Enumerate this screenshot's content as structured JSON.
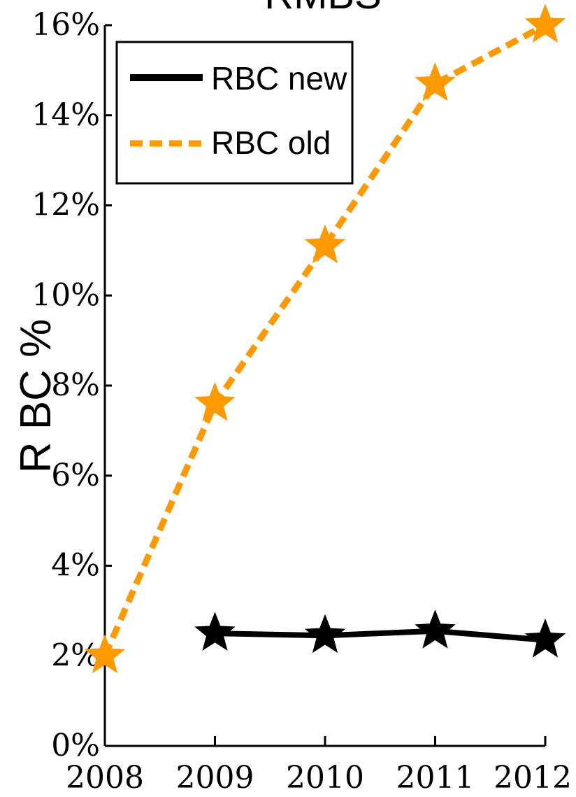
{
  "chart_data": {
    "type": "line",
    "title": "RMBS",
    "xlabel": "",
    "ylabel": "R BC %",
    "categories": [
      "2008",
      "2009",
      "2010",
      "2011",
      "2012"
    ],
    "y_tick_labels": [
      "0%",
      "2%",
      "4%",
      "6%",
      "8%",
      "10%",
      "12%",
      "14%",
      "16%"
    ],
    "ylim": [
      0,
      16
    ],
    "grid": false,
    "legend_placement": "top-left",
    "series": [
      {
        "name": "RBC new",
        "color": "#000000",
        "line_style": "solid",
        "marker": "star",
        "values": [
          null,
          2.5,
          2.45,
          2.55,
          2.35
        ]
      },
      {
        "name": "RBC old",
        "color": "#ff9900",
        "line_style": "dashed",
        "marker": "star",
        "values": [
          2.0,
          7.6,
          11.1,
          14.7,
          16.0
        ]
      }
    ]
  }
}
